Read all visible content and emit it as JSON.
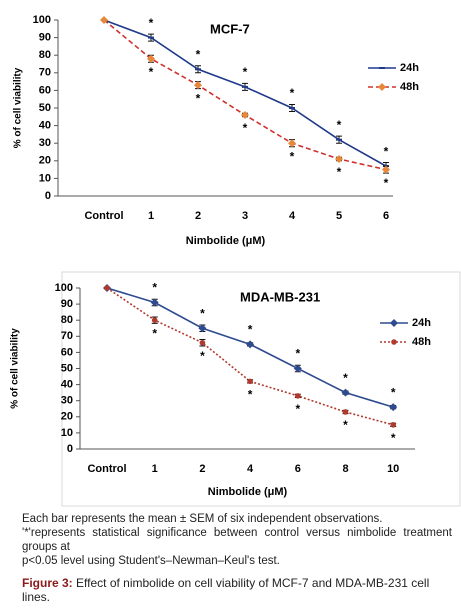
{
  "chart_data": [
    {
      "type": "line",
      "title": "MCF-7",
      "xlabel": "Nimbolide (μM)",
      "ylabel": "% of cell viability",
      "categories": [
        "Control",
        "1",
        "2",
        "3",
        "4",
        "5",
        "6"
      ],
      "ylim": [
        0,
        100
      ],
      "yticks": [
        0,
        10,
        20,
        30,
        40,
        50,
        60,
        70,
        80,
        90,
        100
      ],
      "legend": "right",
      "series": [
        {
          "name": "24h",
          "color": "#1f3a8a",
          "dash": "solid",
          "marker": "tick",
          "values": [
            100,
            90,
            72,
            62,
            50,
            32,
            17
          ],
          "errors": [
            0,
            2,
            2,
            2,
            2,
            2,
            2
          ],
          "significance": [
            null,
            "*",
            "*",
            "*",
            "*",
            "*",
            "*"
          ]
        },
        {
          "name": "48h",
          "color": "#d0312d",
          "marker_color": "#e8873a",
          "dash": "dashed",
          "marker": "diamond",
          "values": [
            100,
            78,
            63,
            46,
            30,
            21,
            15
          ],
          "errors": [
            0,
            2,
            2,
            1,
            2,
            1,
            2
          ],
          "significance": [
            null,
            "*",
            "*",
            "*",
            "*",
            "*",
            "*"
          ]
        }
      ]
    },
    {
      "type": "line",
      "title": "MDA-MB-231",
      "xlabel": "Nimbolide (μM)",
      "ylabel": "% of cell viability",
      "categories": [
        "Control",
        "1",
        "2",
        "4",
        "6",
        "8",
        "10"
      ],
      "ylim": [
        0,
        100
      ],
      "yticks": [
        0,
        10,
        20,
        30,
        40,
        50,
        60,
        70,
        80,
        90,
        100
      ],
      "legend": "right",
      "series": [
        {
          "name": "24h",
          "color": "#2f4b8f",
          "dash": "solid",
          "marker": "diamond",
          "values": [
            100,
            91,
            75,
            65,
            50,
            35,
            26
          ],
          "errors": [
            0,
            2,
            2,
            1,
            2,
            1,
            1
          ],
          "significance": [
            null,
            "*",
            "*",
            "*",
            "*",
            "*",
            "*"
          ]
        },
        {
          "name": "48h",
          "color": "#b03a2e",
          "dash": "dotted",
          "marker": "circle",
          "values": [
            100,
            80,
            66,
            42,
            33,
            23,
            15
          ],
          "errors": [
            0,
            2,
            2,
            1,
            1,
            1,
            1
          ],
          "significance": [
            null,
            "*",
            "*",
            "*",
            "*",
            "*",
            "*"
          ]
        }
      ]
    }
  ],
  "caption": {
    "lines": [
      "Each bar represents the mean ± SEM of six independent observations.",
      "'*'represents statistical significance between control versus nimbolide treatment groups at",
      "p<0.05 level using Student's–Newman–Keul's test."
    ],
    "figure_label": "Figure 3:",
    "figure_text": "Effect of nimbolide on cell viability of MCF-7 and MDA-MB-231 cell lines."
  }
}
